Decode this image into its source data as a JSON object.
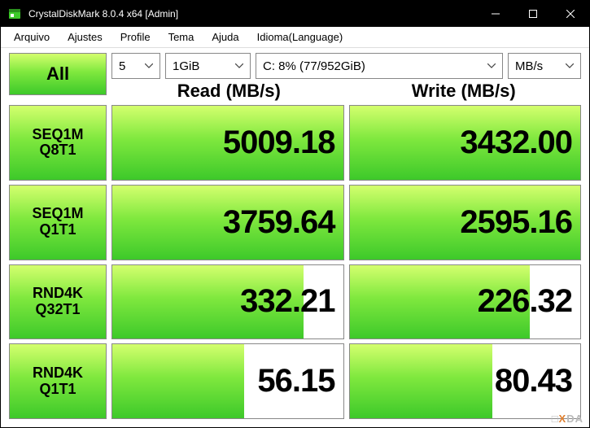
{
  "window": {
    "title": "CrystalDiskMark 8.0.4 x64 [Admin]"
  },
  "menu": {
    "items": [
      "Arquivo",
      "Ajustes",
      "Profile",
      "Tema",
      "Ajuda",
      "Idioma(Language)"
    ]
  },
  "controls": {
    "all_label": "All",
    "count": "5",
    "size": "1GiB",
    "drive": "C: 8% (77/952GiB)",
    "unit": "MB/s"
  },
  "headers": {
    "read": "Read (MB/s)",
    "write": "Write (MB/s)"
  },
  "tests": [
    {
      "label1": "SEQ1M",
      "label2": "Q8T1",
      "read": "5009.18",
      "read_pct": 100,
      "write": "3432.00",
      "write_pct": 100
    },
    {
      "label1": "SEQ1M",
      "label2": "Q1T1",
      "read": "3759.64",
      "read_pct": 100,
      "write": "2595.16",
      "write_pct": 100
    },
    {
      "label1": "RND4K",
      "label2": "Q32T1",
      "read": "332.21",
      "read_pct": 83,
      "write": "226.32",
      "write_pct": 78
    },
    {
      "label1": "RND4K",
      "label2": "Q1T1",
      "read": "56.15",
      "read_pct": 57,
      "write": "80.43",
      "write_pct": 62
    }
  ],
  "style": {
    "gradient_top": "#d4ff6e",
    "gradient_mid": "#7fe83e",
    "gradient_bot": "#3dc92a",
    "titlebar_bg": "#000000",
    "titlebar_fg": "#ffffff",
    "border": "#888888",
    "value_fontsize": 40,
    "header_fontsize": 22,
    "testbtn_fontsize": 18
  },
  "watermark": "XDA"
}
